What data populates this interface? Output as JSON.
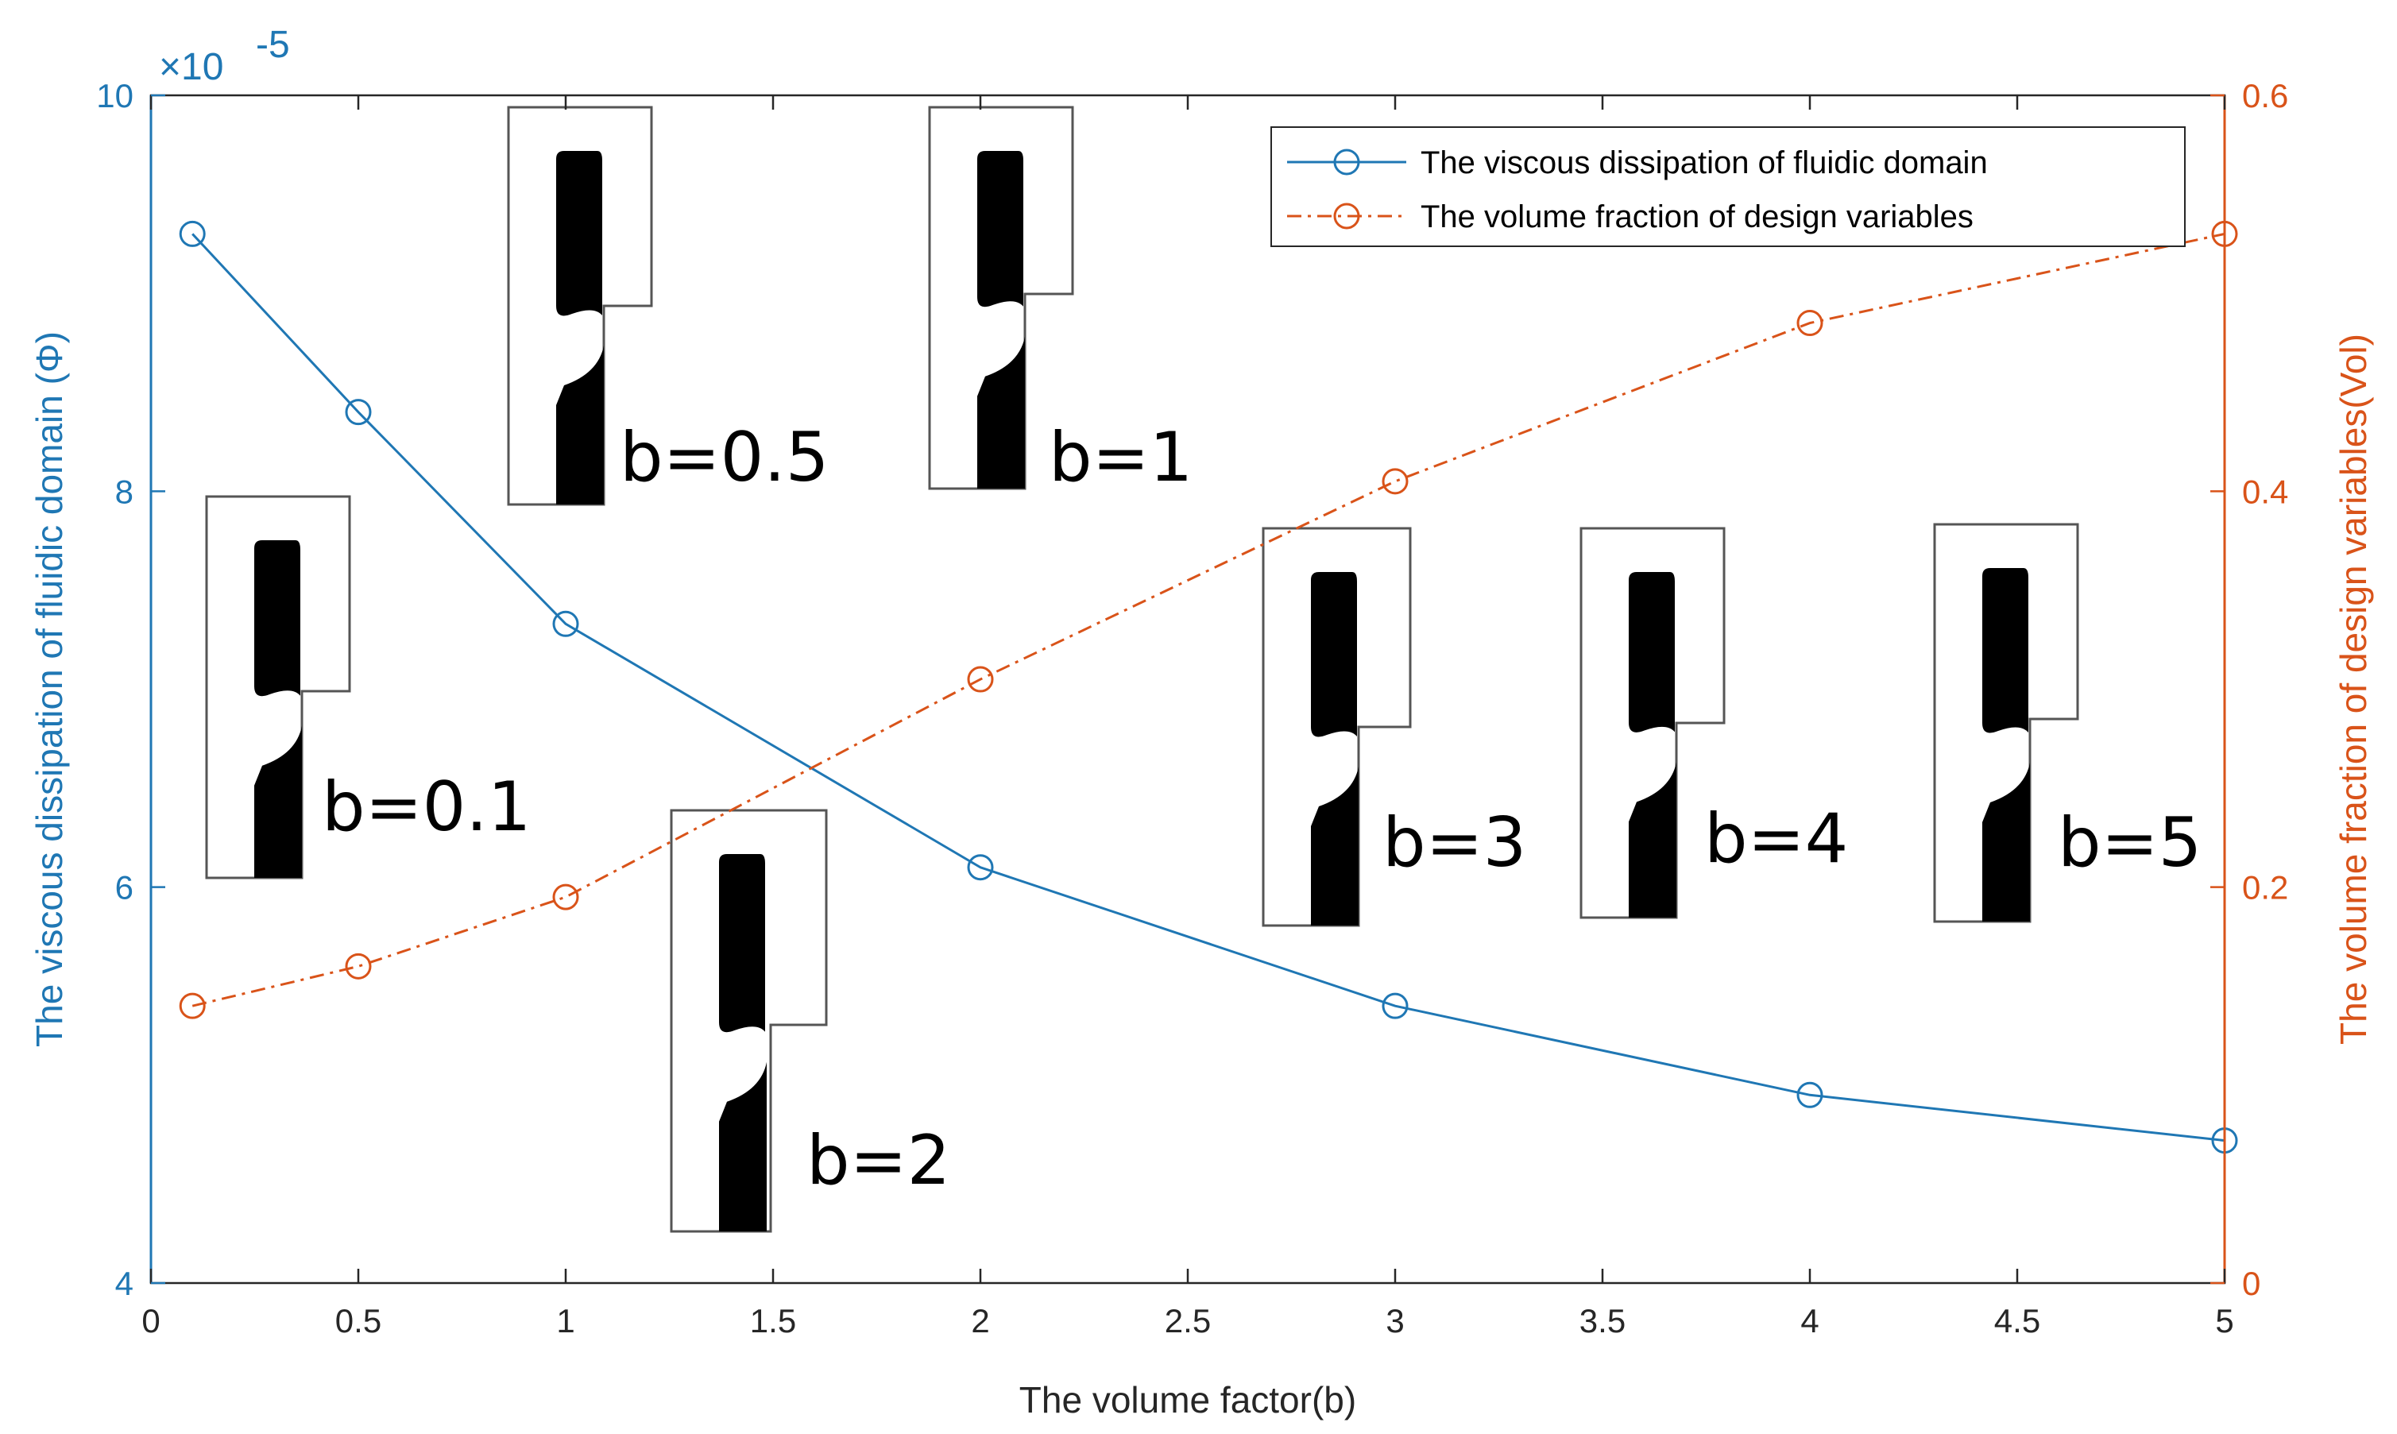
{
  "chart_data": {
    "type": "line",
    "xlabel": "The volume factor(b)",
    "ylabel_left": "The viscous dissipation of fluidic domain (Φ)",
    "ylabel_right": "The volume fraction of design variables(Vol)",
    "xlim": [
      0,
      5
    ],
    "ylim_left": [
      4,
      10
    ],
    "ylim_right": [
      0,
      0.6
    ],
    "left_exponent_prefix": "×10",
    "left_exponent_power": "-5",
    "x_ticks": [
      "0",
      "0.5",
      "1",
      "1.5",
      "2",
      "2.5",
      "3",
      "3.5",
      "4",
      "4.5",
      "5"
    ],
    "left_ticks": [
      "4",
      "6",
      "8",
      "10"
    ],
    "right_ticks": [
      "0",
      "0.2",
      "0.4",
      "0.6"
    ],
    "grid": false,
    "legend_position": "top-right",
    "series": [
      {
        "name": "The viscous dissipation of fluidic domain",
        "axis": "left",
        "color": "#1f77b4",
        "linestyle": "solid",
        "marker": "circle",
        "x": [
          0.1,
          0.5,
          1,
          2,
          3,
          4,
          5
        ],
        "values": [
          9.3,
          8.4,
          7.33,
          6.1,
          5.4,
          4.95,
          4.72
        ]
      },
      {
        "name": "The volume fraction of design variables",
        "axis": "right",
        "color": "#d95319",
        "linestyle": "dash-dot",
        "marker": "circle",
        "x": [
          0.1,
          0.5,
          1,
          2,
          3,
          4,
          5
        ],
        "values": [
          0.14,
          0.16,
          0.195,
          0.305,
          0.405,
          0.485,
          0.53
        ]
      }
    ],
    "annotations": [
      {
        "label": "b=0.1"
      },
      {
        "label": "b=0.5"
      },
      {
        "label": "b=1"
      },
      {
        "label": "b=2"
      },
      {
        "label": "b=3"
      },
      {
        "label": "b=4"
      },
      {
        "label": "b=5"
      }
    ]
  }
}
